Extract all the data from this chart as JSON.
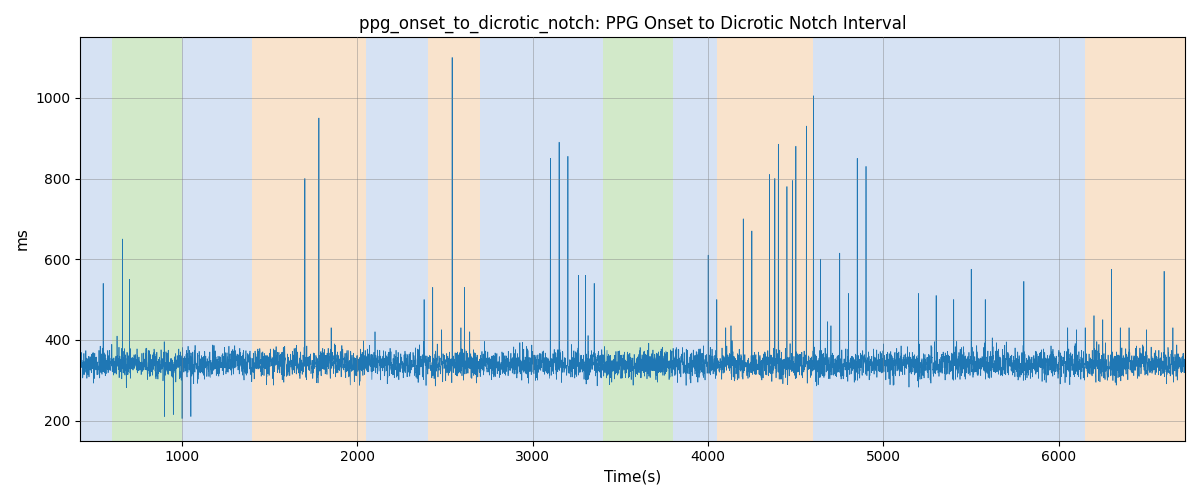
{
  "title": "ppg_onset_to_dicrotic_notch: PPG Onset to Dicrotic Notch Interval",
  "xlabel": "Time(s)",
  "ylabel": "ms",
  "xlim": [
    420,
    6720
  ],
  "ylim": [
    150,
    1150
  ],
  "yticks": [
    200,
    400,
    600,
    800,
    1000
  ],
  "xticks": [
    1000,
    2000,
    3000,
    4000,
    5000,
    6000
  ],
  "signal_color": "#1f77b4",
  "signal_linewidth": 0.5,
  "background_bands": [
    {
      "xmin": 420,
      "xmax": 600,
      "color": "#aec6e8",
      "alpha": 0.5
    },
    {
      "xmin": 600,
      "xmax": 1000,
      "color": "#90c97a",
      "alpha": 0.4
    },
    {
      "xmin": 1000,
      "xmax": 1400,
      "color": "#aec6e8",
      "alpha": 0.5
    },
    {
      "xmin": 1400,
      "xmax": 2050,
      "color": "#f5c99a",
      "alpha": 0.5
    },
    {
      "xmin": 2050,
      "xmax": 2400,
      "color": "#aec6e8",
      "alpha": 0.5
    },
    {
      "xmin": 2400,
      "xmax": 2700,
      "color": "#f5c99a",
      "alpha": 0.5
    },
    {
      "xmin": 2700,
      "xmax": 3100,
      "color": "#aec6e8",
      "alpha": 0.5
    },
    {
      "xmin": 3100,
      "xmax": 3400,
      "color": "#aec6e8",
      "alpha": 0.5
    },
    {
      "xmin": 3400,
      "xmax": 3800,
      "color": "#90c97a",
      "alpha": 0.4
    },
    {
      "xmin": 3800,
      "xmax": 4050,
      "color": "#aec6e8",
      "alpha": 0.5
    },
    {
      "xmin": 4050,
      "xmax": 4600,
      "color": "#f5c99a",
      "alpha": 0.5
    },
    {
      "xmin": 4600,
      "xmax": 4850,
      "color": "#aec6e8",
      "alpha": 0.5
    },
    {
      "xmin": 4850,
      "xmax": 5800,
      "color": "#aec6e8",
      "alpha": 0.5
    },
    {
      "xmin": 5800,
      "xmax": 6150,
      "color": "#aec6e8",
      "alpha": 0.5
    },
    {
      "xmin": 6150,
      "xmax": 6720,
      "color": "#f5c99a",
      "alpha": 0.5
    }
  ],
  "seed": 42,
  "t_start": 420,
  "t_end": 6720,
  "n_points": 6300,
  "base_mean": 340,
  "base_std": 18,
  "noise_scale": 1.0,
  "spikes": [
    {
      "t": 550,
      "v": 540
    },
    {
      "t": 660,
      "v": 650
    },
    {
      "t": 700,
      "v": 550
    },
    {
      "t": 900,
      "v": 210
    },
    {
      "t": 950,
      "v": 215
    },
    {
      "t": 1000,
      "v": 205
    },
    {
      "t": 1010,
      "v": 320
    },
    {
      "t": 1050,
      "v": 210
    },
    {
      "t": 1700,
      "v": 800
    },
    {
      "t": 1780,
      "v": 950
    },
    {
      "t": 1850,
      "v": 430
    },
    {
      "t": 1870,
      "v": 390
    },
    {
      "t": 2100,
      "v": 420
    },
    {
      "t": 2200,
      "v": 330
    },
    {
      "t": 2380,
      "v": 500
    },
    {
      "t": 2430,
      "v": 530
    },
    {
      "t": 2480,
      "v": 425
    },
    {
      "t": 2540,
      "v": 1100
    },
    {
      "t": 2590,
      "v": 430
    },
    {
      "t": 2610,
      "v": 530
    },
    {
      "t": 2640,
      "v": 420
    },
    {
      "t": 3100,
      "v": 850
    },
    {
      "t": 3150,
      "v": 890
    },
    {
      "t": 3200,
      "v": 855
    },
    {
      "t": 3260,
      "v": 560
    },
    {
      "t": 3300,
      "v": 560
    },
    {
      "t": 3350,
      "v": 540
    },
    {
      "t": 4000,
      "v": 610
    },
    {
      "t": 4050,
      "v": 500
    },
    {
      "t": 4100,
      "v": 430
    },
    {
      "t": 4130,
      "v": 435
    },
    {
      "t": 4200,
      "v": 700
    },
    {
      "t": 4250,
      "v": 670
    },
    {
      "t": 4350,
      "v": 810
    },
    {
      "t": 4380,
      "v": 800
    },
    {
      "t": 4400,
      "v": 885
    },
    {
      "t": 4450,
      "v": 780
    },
    {
      "t": 4480,
      "v": 795
    },
    {
      "t": 4500,
      "v": 880
    },
    {
      "t": 4560,
      "v": 930
    },
    {
      "t": 4600,
      "v": 1005
    },
    {
      "t": 4640,
      "v": 600
    },
    {
      "t": 4680,
      "v": 445
    },
    {
      "t": 4700,
      "v": 435
    },
    {
      "t": 4750,
      "v": 615
    },
    {
      "t": 4800,
      "v": 515
    },
    {
      "t": 4850,
      "v": 850
    },
    {
      "t": 4900,
      "v": 830
    },
    {
      "t": 5000,
      "v": 390
    },
    {
      "t": 5100,
      "v": 385
    },
    {
      "t": 5200,
      "v": 515
    },
    {
      "t": 5300,
      "v": 510
    },
    {
      "t": 5400,
      "v": 500
    },
    {
      "t": 5500,
      "v": 575
    },
    {
      "t": 5580,
      "v": 500
    },
    {
      "t": 5620,
      "v": 405
    },
    {
      "t": 5700,
      "v": 395
    },
    {
      "t": 5750,
      "v": 380
    },
    {
      "t": 5800,
      "v": 545
    },
    {
      "t": 6050,
      "v": 430
    },
    {
      "t": 6100,
      "v": 425
    },
    {
      "t": 6150,
      "v": 430
    },
    {
      "t": 6200,
      "v": 460
    },
    {
      "t": 6250,
      "v": 450
    },
    {
      "t": 6300,
      "v": 575
    },
    {
      "t": 6350,
      "v": 430
    },
    {
      "t": 6400,
      "v": 430
    },
    {
      "t": 6500,
      "v": 425
    },
    {
      "t": 6600,
      "v": 570
    },
    {
      "t": 6650,
      "v": 430
    }
  ]
}
